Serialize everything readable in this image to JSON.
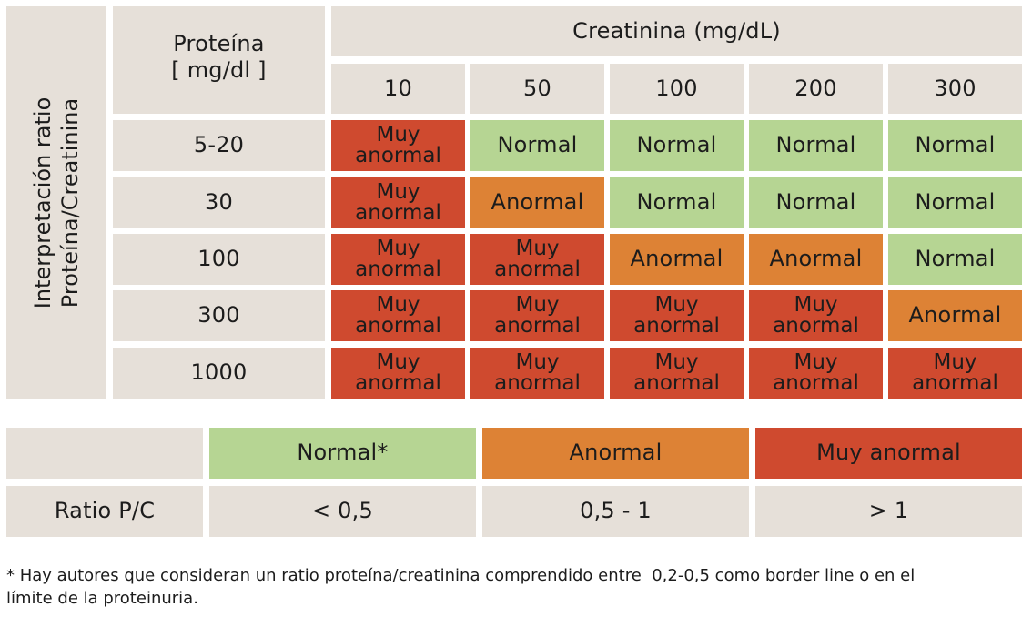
{
  "table": {
    "side_label_line1": "Interpretación ratio",
    "side_label_line2": "Proteína/Creatinina",
    "protein_header_line1": "Proteína",
    "protein_header_line2": "[ mg/dl ]",
    "creatinine_header": "Creatinina (mg/dL)",
    "creatinine_columns": [
      "10",
      "50",
      "100",
      "200",
      "300"
    ],
    "rows": [
      {
        "protein": "5-20",
        "cells": [
          {
            "cat": "red",
            "line1": "Muy",
            "line2": "anormal"
          },
          {
            "cat": "green",
            "line1": "Normal",
            "line2": ""
          },
          {
            "cat": "green",
            "line1": "Normal",
            "line2": ""
          },
          {
            "cat": "green",
            "line1": "Normal",
            "line2": ""
          },
          {
            "cat": "green",
            "line1": "Normal",
            "line2": ""
          }
        ]
      },
      {
        "protein": "30",
        "cells": [
          {
            "cat": "red",
            "line1": "Muy",
            "line2": "anormal"
          },
          {
            "cat": "orange",
            "line1": "Anormal",
            "line2": ""
          },
          {
            "cat": "green",
            "line1": "Normal",
            "line2": ""
          },
          {
            "cat": "green",
            "line1": "Normal",
            "line2": ""
          },
          {
            "cat": "green",
            "line1": "Normal",
            "line2": ""
          }
        ]
      },
      {
        "protein": "100",
        "cells": [
          {
            "cat": "red",
            "line1": "Muy",
            "line2": "anormal"
          },
          {
            "cat": "red",
            "line1": "Muy",
            "line2": "anormal"
          },
          {
            "cat": "orange",
            "line1": "Anormal",
            "line2": ""
          },
          {
            "cat": "orange",
            "line1": "Anormal",
            "line2": ""
          },
          {
            "cat": "green",
            "line1": "Normal",
            "line2": ""
          }
        ]
      },
      {
        "protein": "300",
        "cells": [
          {
            "cat": "red",
            "line1": "Muy",
            "line2": "anormal"
          },
          {
            "cat": "red",
            "line1": "Muy",
            "line2": "anormal"
          },
          {
            "cat": "red",
            "line1": "Muy",
            "line2": "anormal"
          },
          {
            "cat": "red",
            "line1": "Muy",
            "line2": "anormal"
          },
          {
            "cat": "orange",
            "line1": "Anormal",
            "line2": ""
          }
        ]
      },
      {
        "protein": "1000",
        "cells": [
          {
            "cat": "red",
            "line1": "Muy",
            "line2": "anormal"
          },
          {
            "cat": "red",
            "line1": "Muy",
            "line2": "anormal"
          },
          {
            "cat": "red",
            "line1": "Muy",
            "line2": "anormal"
          },
          {
            "cat": "red",
            "line1": "Muy",
            "line2": "anormal"
          },
          {
            "cat": "red",
            "line1": "Muy",
            "line2": "anormal"
          }
        ]
      }
    ]
  },
  "legend": {
    "row_label": "Ratio P/C",
    "categories": [
      {
        "cat": "green",
        "label": "Normal*",
        "range": "< 0,5"
      },
      {
        "cat": "orange",
        "label": "Anormal",
        "range": "0,5 - 1"
      },
      {
        "cat": "red",
        "label": "Muy anormal",
        "range": "> 1"
      }
    ]
  },
  "footnote": {
    "line1": "* Hay autores que consideran un ratio proteína/creatinina comprendido entre  0,2-0,5 como border line o en el",
    "line2": "límite de la proteinuria."
  },
  "colors": {
    "beige": "#e6e0d9",
    "green": "#b6d593",
    "orange": "#dd8235",
    "red": "#cf4a2f"
  }
}
